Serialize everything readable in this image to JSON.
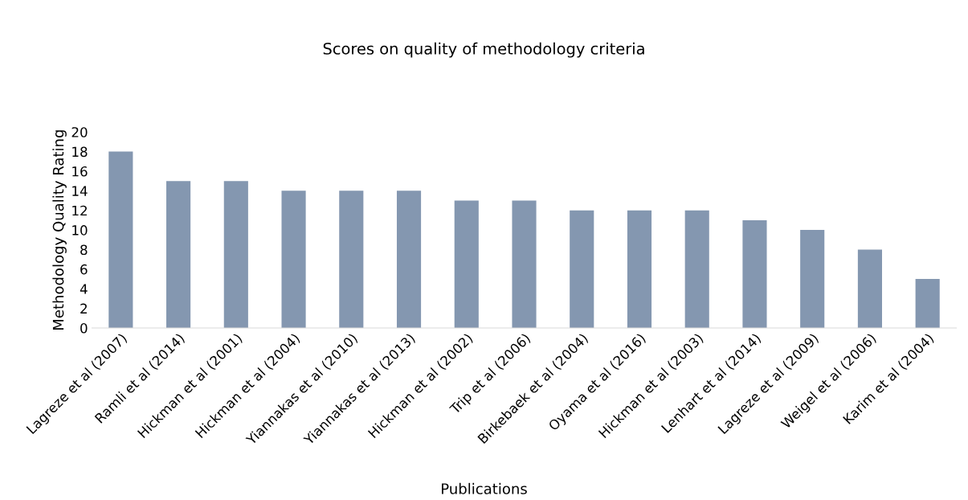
{
  "chart_data": {
    "type": "bar",
    "title": "Scores on quality of methodology criteria",
    "xlabel": "Publications",
    "ylabel": "Methodology Quality Rating",
    "categories": [
      "Lagreze et al (2007)",
      "Ramli et al (2014)",
      "Hickman et al (2001)",
      "Hickman et al (2004)",
      "Yiannakas et al (2010)",
      "Yiannakas et al (2013)",
      "Hickman et al (2002)",
      "Trip et al (2006)",
      "Birkebaek et al (2004)",
      "Oyama et al (2016)",
      "Hickman et al (2003)",
      "Lenhart et al (2014)",
      "Lagreze et al (2009)",
      "Weigel et al (2006)",
      "Karim et al (2004)"
    ],
    "values": [
      18,
      15,
      15,
      14,
      14,
      14,
      13,
      13,
      12,
      12,
      12,
      11,
      10,
      8,
      5
    ],
    "color": "#8497b0",
    "ylim": [
      0,
      20
    ],
    "yticks": [
      0,
      2,
      4,
      6,
      8,
      10,
      12,
      14,
      16,
      18,
      20
    ],
    "grid": false,
    "legend": false
  }
}
